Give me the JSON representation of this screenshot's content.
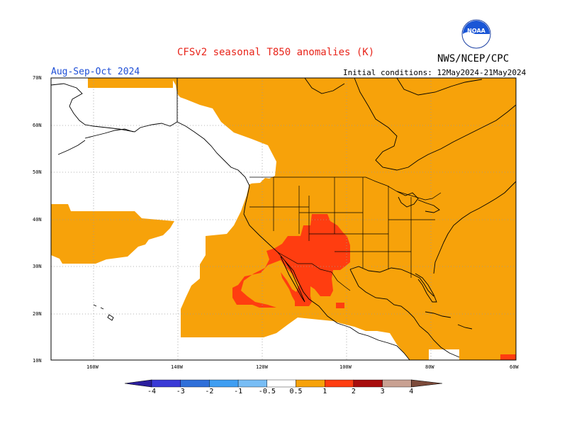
{
  "header": {
    "title": "CFSv2 seasonal T850 anomalies (K)",
    "agency": "NWS/NCEP/CPC",
    "logo_text": "NOAA",
    "season": "Aug-Sep-Oct 2024",
    "initial_conditions": "Initial conditions: 12May2024-21May2024"
  },
  "axes": {
    "lat_labels": [
      "70N",
      "60N",
      "50N",
      "40N",
      "30N",
      "20N",
      "10N"
    ],
    "lon_labels": [
      "160W",
      "140W",
      "120W",
      "100W",
      "80W",
      "60W"
    ]
  },
  "colorbar": {
    "labels": [
      "-4",
      "-3",
      "-2",
      "-1",
      "-0.5",
      "0.5",
      "1",
      "2",
      "3",
      "4"
    ],
    "colors": [
      "#2c1f9e",
      "#3a3ad6",
      "#2f6fd9",
      "#3f9ef2",
      "#78bdf5",
      "#ffffff",
      "#f7a20a",
      "#ff3d10",
      "#a80d0d",
      "#c9a192",
      "#7c4a3a"
    ]
  },
  "colors": {
    "anomaly_0_5_to_1": "#f7a20a",
    "anomaly_1_to_2": "#ff3d10",
    "anomaly_2_to_3": "#a80d0d",
    "title_red": "#e8251b",
    "season_blue": "#1f4fd6"
  }
}
